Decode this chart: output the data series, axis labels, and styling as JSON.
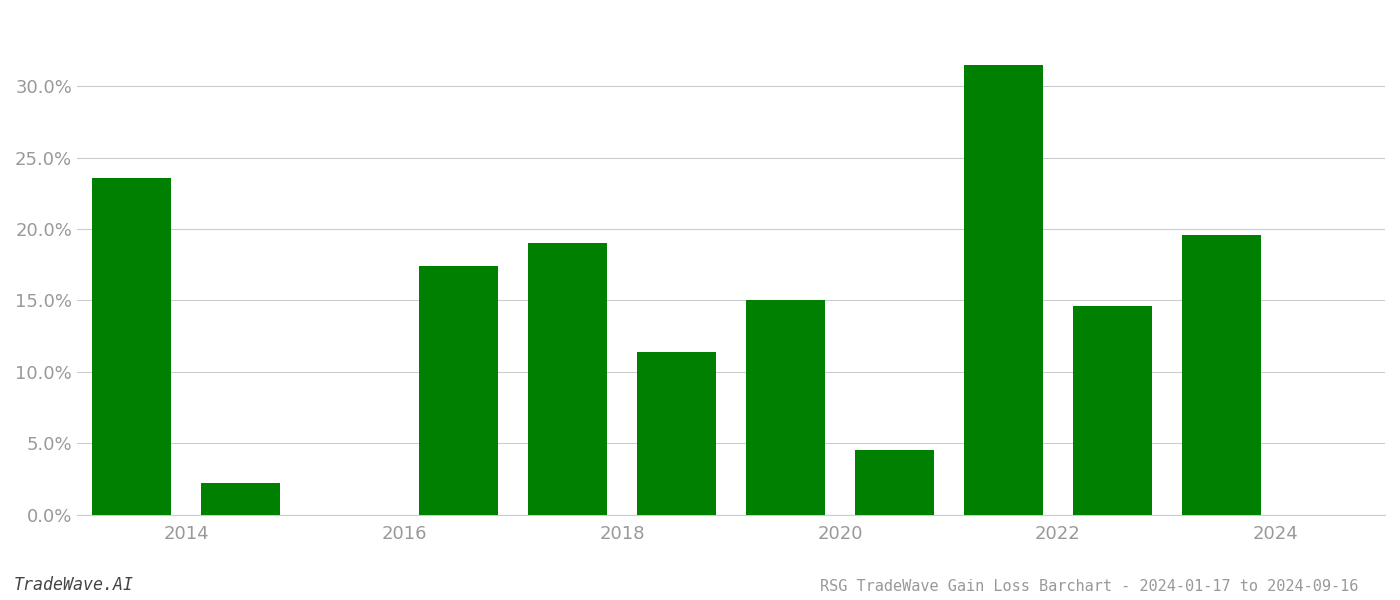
{
  "bar_positions": [
    2013.5,
    2014.5,
    2015.5,
    2016.5,
    2017.5,
    2018.5,
    2019.5,
    2020.5,
    2021.5,
    2022.5,
    2023.5
  ],
  "values": [
    0.236,
    0.022,
    0.0,
    0.174,
    0.19,
    0.114,
    0.15,
    0.045,
    0.315,
    0.146,
    0.196
  ],
  "bar_color": "#008000",
  "title": "RSG TradeWave Gain Loss Barchart - 2024-01-17 to 2024-09-16",
  "watermark": "TradeWave.AI",
  "xlim": [
    2013.0,
    2025.0
  ],
  "ylim": [
    0,
    0.35
  ],
  "yticks": [
    0.0,
    0.05,
    0.1,
    0.15,
    0.2,
    0.25,
    0.3
  ],
  "xtick_positions": [
    2014,
    2016,
    2018,
    2020,
    2022,
    2024
  ],
  "xtick_labels": [
    "2014",
    "2016",
    "2018",
    "2020",
    "2022",
    "2024"
  ],
  "background_color": "#ffffff",
  "grid_color": "#cccccc",
  "tick_color": "#999999",
  "title_fontsize": 11,
  "watermark_fontsize": 12,
  "bar_width": 0.72
}
